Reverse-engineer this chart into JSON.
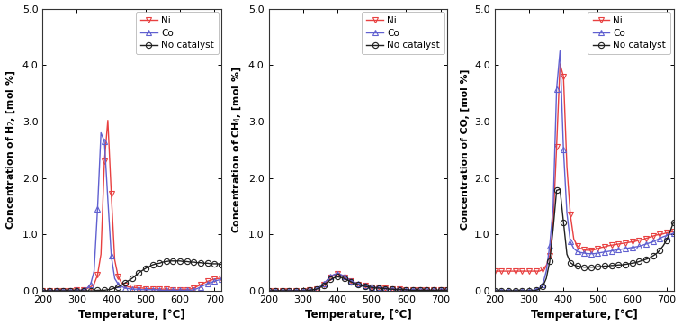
{
  "temp": [
    200,
    210,
    220,
    230,
    240,
    250,
    260,
    270,
    280,
    290,
    300,
    310,
    320,
    330,
    340,
    350,
    360,
    370,
    380,
    390,
    400,
    410,
    420,
    430,
    440,
    450,
    460,
    470,
    480,
    490,
    500,
    510,
    520,
    530,
    540,
    550,
    560,
    570,
    580,
    590,
    600,
    610,
    620,
    630,
    640,
    650,
    660,
    670,
    680,
    690,
    700,
    710,
    720
  ],
  "H2_Ni": [
    0.0,
    0.0,
    0.0,
    0.0,
    0.0,
    0.0,
    0.0,
    0.0,
    0.0,
    0.0,
    0.01,
    0.01,
    0.02,
    0.04,
    0.07,
    0.12,
    0.28,
    0.65,
    2.3,
    3.02,
    1.72,
    0.55,
    0.25,
    0.14,
    0.1,
    0.07,
    0.06,
    0.06,
    0.05,
    0.05,
    0.04,
    0.04,
    0.04,
    0.03,
    0.03,
    0.03,
    0.03,
    0.02,
    0.02,
    0.02,
    0.02,
    0.02,
    0.02,
    0.03,
    0.05,
    0.08,
    0.11,
    0.14,
    0.17,
    0.19,
    0.21,
    0.22,
    0.22
  ],
  "H2_Co": [
    0.0,
    0.0,
    0.0,
    0.0,
    0.0,
    0.0,
    0.0,
    0.0,
    0.0,
    0.0,
    0.01,
    0.01,
    0.02,
    0.05,
    0.12,
    0.35,
    1.45,
    2.8,
    2.65,
    1.62,
    0.62,
    0.22,
    0.12,
    0.08,
    0.05,
    0.04,
    0.03,
    0.03,
    0.03,
    0.02,
    0.02,
    0.02,
    0.02,
    0.02,
    0.01,
    0.01,
    0.01,
    0.01,
    0.01,
    0.01,
    0.01,
    0.01,
    0.01,
    0.01,
    0.02,
    0.04,
    0.07,
    0.1,
    0.13,
    0.15,
    0.17,
    0.19,
    0.2
  ],
  "H2_NC": [
    0.0,
    0.0,
    0.0,
    0.0,
    0.0,
    0.0,
    0.0,
    0.0,
    0.0,
    0.0,
    0.0,
    0.0,
    0.0,
    0.0,
    0.0,
    0.0,
    0.01,
    0.01,
    0.01,
    0.02,
    0.03,
    0.05,
    0.07,
    0.1,
    0.14,
    0.18,
    0.22,
    0.27,
    0.32,
    0.36,
    0.4,
    0.43,
    0.46,
    0.48,
    0.49,
    0.51,
    0.52,
    0.53,
    0.53,
    0.53,
    0.53,
    0.52,
    0.52,
    0.51,
    0.51,
    0.5,
    0.5,
    0.49,
    0.49,
    0.48,
    0.48,
    0.48,
    0.47
  ],
  "CH4_Ni": [
    0.0,
    0.0,
    0.0,
    0.0,
    0.0,
    0.0,
    0.0,
    0.0,
    0.0,
    0.0,
    0.0,
    0.01,
    0.01,
    0.02,
    0.04,
    0.07,
    0.12,
    0.18,
    0.24,
    0.28,
    0.3,
    0.28,
    0.24,
    0.2,
    0.17,
    0.14,
    0.12,
    0.1,
    0.09,
    0.08,
    0.07,
    0.06,
    0.06,
    0.05,
    0.05,
    0.04,
    0.04,
    0.03,
    0.03,
    0.03,
    0.02,
    0.02,
    0.02,
    0.02,
    0.01,
    0.01,
    0.01,
    0.01,
    0.01,
    0.01,
    0.01,
    0.01,
    0.01
  ],
  "CH4_Co": [
    0.0,
    0.0,
    0.0,
    0.0,
    0.0,
    0.0,
    0.0,
    0.0,
    0.0,
    0.0,
    0.0,
    0.01,
    0.01,
    0.02,
    0.04,
    0.08,
    0.13,
    0.19,
    0.25,
    0.29,
    0.31,
    0.29,
    0.26,
    0.22,
    0.18,
    0.15,
    0.13,
    0.11,
    0.09,
    0.08,
    0.07,
    0.06,
    0.06,
    0.05,
    0.04,
    0.04,
    0.03,
    0.03,
    0.03,
    0.02,
    0.02,
    0.02,
    0.02,
    0.01,
    0.01,
    0.01,
    0.01,
    0.01,
    0.01,
    0.01,
    0.01,
    0.01,
    0.01
  ],
  "CH4_NC": [
    0.0,
    0.0,
    0.0,
    0.0,
    0.0,
    0.0,
    0.0,
    0.0,
    0.0,
    0.0,
    0.0,
    0.0,
    0.01,
    0.02,
    0.03,
    0.06,
    0.1,
    0.15,
    0.2,
    0.23,
    0.25,
    0.24,
    0.22,
    0.19,
    0.16,
    0.13,
    0.11,
    0.09,
    0.08,
    0.07,
    0.06,
    0.05,
    0.05,
    0.04,
    0.04,
    0.03,
    0.03,
    0.02,
    0.02,
    0.02,
    0.02,
    0.01,
    0.01,
    0.01,
    0.01,
    0.01,
    0.01,
    0.01,
    0.01,
    0.01,
    0.01,
    0.01,
    0.01
  ],
  "CO_Ni": [
    0.35,
    0.35,
    0.35,
    0.35,
    0.35,
    0.35,
    0.35,
    0.35,
    0.35,
    0.35,
    0.35,
    0.35,
    0.35,
    0.35,
    0.38,
    0.45,
    0.62,
    1.2,
    2.55,
    4.02,
    3.8,
    2.2,
    1.35,
    0.92,
    0.8,
    0.75,
    0.73,
    0.72,
    0.72,
    0.73,
    0.75,
    0.77,
    0.78,
    0.8,
    0.81,
    0.82,
    0.83,
    0.84,
    0.85,
    0.86,
    0.87,
    0.88,
    0.9,
    0.91,
    0.93,
    0.95,
    0.97,
    0.99,
    1.0,
    1.01,
    1.03,
    1.04,
    1.05
  ],
  "CO_Co": [
    0.0,
    0.0,
    0.0,
    0.0,
    0.0,
    0.0,
    0.0,
    0.0,
    0.0,
    0.0,
    0.0,
    0.01,
    0.02,
    0.05,
    0.12,
    0.35,
    0.8,
    1.5,
    3.58,
    4.25,
    2.5,
    1.38,
    0.87,
    0.75,
    0.7,
    0.68,
    0.67,
    0.66,
    0.66,
    0.66,
    0.67,
    0.68,
    0.69,
    0.7,
    0.71,
    0.72,
    0.73,
    0.74,
    0.75,
    0.76,
    0.77,
    0.78,
    0.79,
    0.81,
    0.83,
    0.85,
    0.87,
    0.9,
    0.93,
    0.96,
    0.98,
    1.0,
    1.02
  ],
  "CO_NC": [
    0.0,
    0.0,
    0.0,
    0.0,
    0.0,
    0.0,
    0.0,
    0.0,
    0.0,
    0.0,
    0.0,
    0.0,
    0.01,
    0.03,
    0.08,
    0.22,
    0.52,
    1.1,
    1.78,
    1.8,
    1.22,
    0.65,
    0.5,
    0.46,
    0.44,
    0.43,
    0.42,
    0.42,
    0.42,
    0.42,
    0.43,
    0.43,
    0.44,
    0.44,
    0.45,
    0.45,
    0.46,
    0.46,
    0.47,
    0.48,
    0.49,
    0.5,
    0.52,
    0.54,
    0.56,
    0.58,
    0.62,
    0.66,
    0.72,
    0.8,
    0.9,
    1.05,
    1.22
  ],
  "colors": {
    "Ni": "#e84040",
    "Co": "#6060d0",
    "NC": "#202020"
  },
  "markers": {
    "Ni": "v",
    "Co": "^",
    "NC": "o"
  },
  "marker_size": 4.5,
  "markerfacecolor": "none",
  "ylim": [
    0.0,
    5.0
  ],
  "yticks": [
    0.0,
    1.0,
    2.0,
    3.0,
    4.0,
    5.0
  ],
  "xlim": [
    200,
    720
  ],
  "xticks": [
    200,
    300,
    400,
    500,
    600,
    700
  ],
  "xlabel": "Temperature, [°C]",
  "ylabels": [
    "Concentration of H$_2$, [mol %]",
    "Concentration of CH$_4$, [mol %]",
    "Concentration of CO, [mol %]"
  ],
  "legend_labels": [
    "Ni",
    "Co",
    "No catalyst"
  ],
  "bg_color": "#ffffff",
  "linewidth": 1.0,
  "markeredgewidth": 0.8
}
